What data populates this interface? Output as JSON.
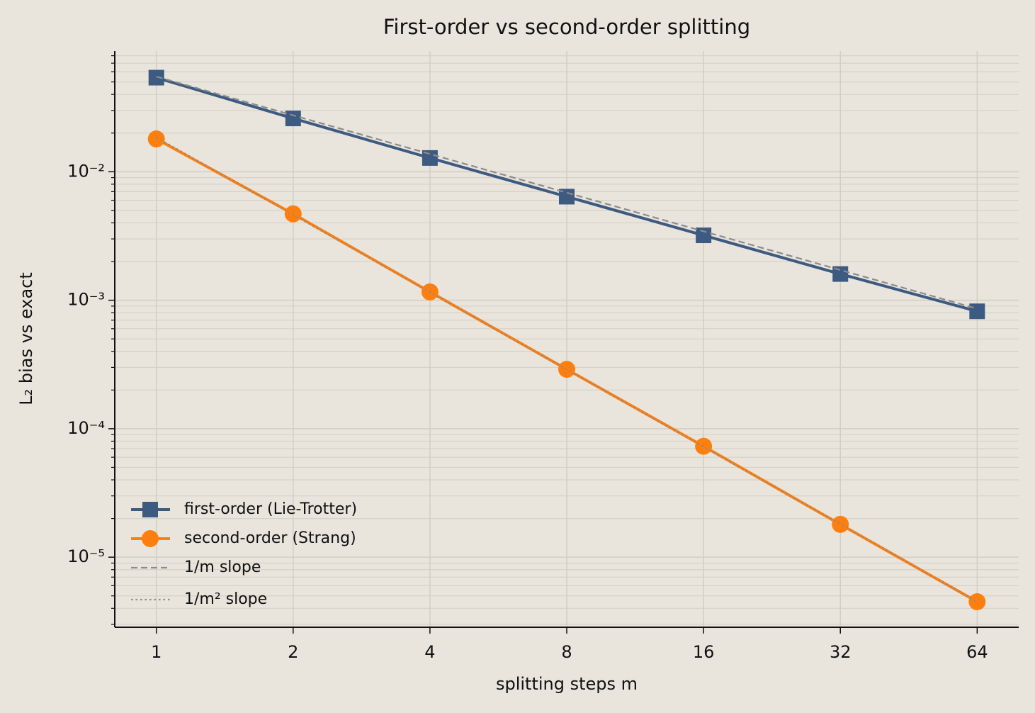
{
  "chart_data": {
    "type": "line",
    "title": "First-order vs second-order splitting",
    "x_label": "splitting steps m",
    "y_label": "L₂ bias vs exact",
    "x": [
      1,
      2,
      4,
      8,
      16,
      32,
      64
    ],
    "series": [
      {
        "name": "first-order (Lie-Trotter)",
        "color": "#3d5a80",
        "marker": "square",
        "style": "solid",
        "values": [
          0.054,
          0.026,
          0.0128,
          0.0064,
          0.0032,
          0.0016,
          0.00082
        ]
      },
      {
        "name": "second-order (Strang)",
        "color": "#ff7f0e",
        "marker": "circle",
        "style": "solid",
        "values": [
          0.018,
          0.0047,
          0.00116,
          0.00029,
          7.3e-05,
          1.8e-05,
          4.5e-06
        ]
      },
      {
        "name": "1/m slope",
        "color": "#8c8c8c",
        "marker": "none",
        "style": "dashed",
        "values": [
          0.055,
          0.0275,
          0.01375,
          0.006875,
          0.0034375,
          0.00171875,
          0.000859
        ]
      },
      {
        "name": "1/m² slope",
        "color": "#8c8c8c",
        "marker": "none",
        "style": "dotted",
        "values": [
          0.0185,
          0.004625,
          0.00115625,
          0.000289,
          7.23e-05,
          1.81e-05,
          4.5e-06
        ]
      }
    ],
    "xscale": "log2",
    "yscale": "log10",
    "xlim": [
      0.81,
      79
    ],
    "ylim": [
      2.85e-06,
      0.087
    ],
    "xticks": [
      1,
      2,
      4,
      8,
      16,
      32,
      64
    ],
    "yticks": [
      {
        "value": 1e-05,
        "label": "10⁻⁵"
      },
      {
        "value": 0.0001,
        "label": "10⁻⁴"
      },
      {
        "value": 0.001,
        "label": "10⁻³"
      },
      {
        "value": 0.01,
        "label": "10⁻²"
      }
    ],
    "yminorticks": [
      3e-06,
      4e-06,
      5e-06,
      6e-06,
      7e-06,
      8e-06,
      9e-06,
      2e-05,
      3e-05,
      4e-05,
      5e-05,
      6e-05,
      7e-05,
      8e-05,
      9e-05,
      0.0002,
      0.0003,
      0.0004,
      0.0005,
      0.0006,
      0.0007,
      0.0008,
      0.0009,
      0.002,
      0.003,
      0.004,
      0.005,
      0.006,
      0.007,
      0.008,
      0.009,
      0.02,
      0.03,
      0.04,
      0.05,
      0.06,
      0.07,
      0.08
    ],
    "grid": true,
    "legend": "lower left"
  }
}
